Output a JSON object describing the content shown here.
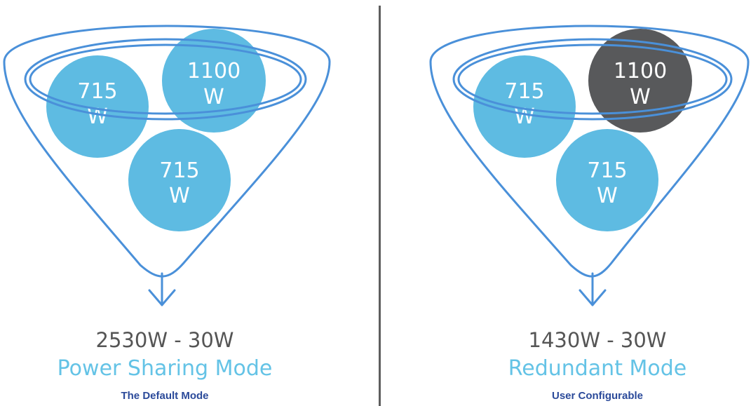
{
  "panels": [
    {
      "total": "2530W - 30W",
      "mode": "Power Sharing Mode",
      "subtitle": "The Default Mode",
      "psus": [
        {
          "value": "715",
          "unit": "W",
          "state": "active",
          "color": "#5ebbe2"
        },
        {
          "value": "1100",
          "unit": "W",
          "state": "active",
          "color": "#5ebbe2"
        },
        {
          "value": "715",
          "unit": "W",
          "state": "active",
          "color": "#5ebbe2"
        }
      ]
    },
    {
      "total": "1430W - 30W",
      "mode": "Redundant Mode",
      "subtitle": "User Configurable",
      "psus": [
        {
          "value": "715",
          "unit": "W",
          "state": "active",
          "color": "#5ebbe2"
        },
        {
          "value": "1100",
          "unit": "W",
          "state": "standby",
          "color": "#58595b"
        },
        {
          "value": "715",
          "unit": "W",
          "state": "active",
          "color": "#5ebbe2"
        }
      ]
    }
  ],
  "colors": {
    "funnel_stroke": "#4a90d9",
    "divider": "#5e5e5e",
    "total_text": "#555555",
    "mode_text": "#64c3e6",
    "subtitle_text": "#2b4a9a"
  }
}
